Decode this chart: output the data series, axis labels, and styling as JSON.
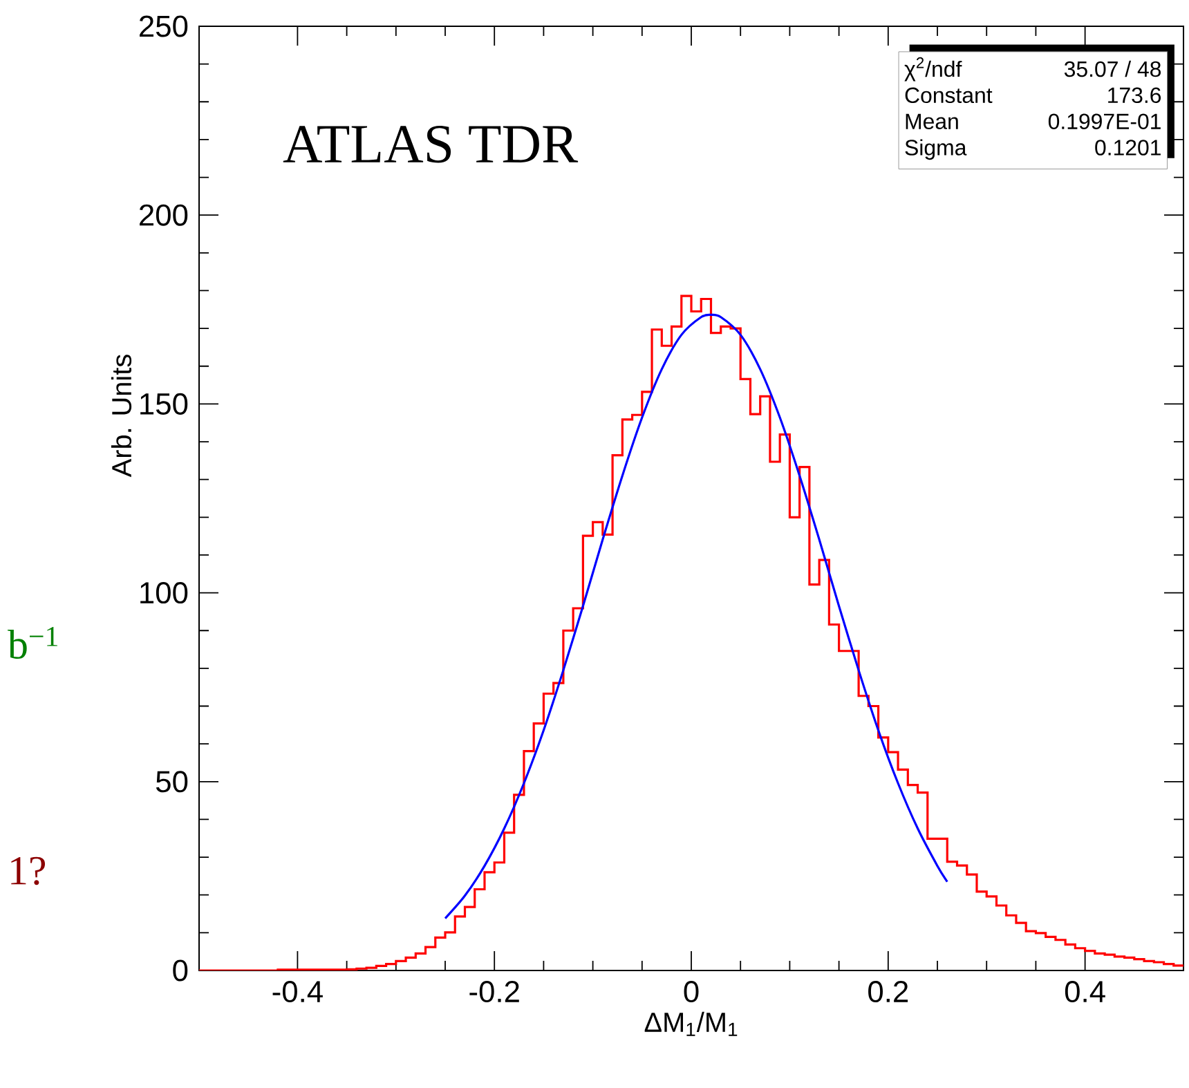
{
  "chart_data": {
    "type": "histogram",
    "xlabel": "ΔM$_{1}$/M$_{1}$",
    "ylabel": "Arb. Units",
    "annotations": [
      "ATLAS TDR",
      "χ$^{2}$/ndf",
      "35.07 / 48",
      "Constant",
      "173.6",
      "Mean",
      "0.1997E-01",
      "Sigma",
      "0.1201",
      "b$^{−1}$",
      "1?"
    ],
    "xlim": [
      -0.5,
      0.5
    ],
    "ylim": [
      0,
      250
    ],
    "xticks": [
      -0.4,
      -0.2,
      0,
      0.2,
      0.4
    ],
    "yticks": [
      0,
      50,
      100,
      150,
      200,
      250
    ],
    "series": [
      {
        "color": "#ff0000",
        "bins": [
          -0.5,
          -0.49,
          -0.48,
          -0.47,
          -0.46,
          -0.45,
          -0.44,
          -0.43,
          -0.42,
          -0.41,
          -0.4,
          -0.39,
          -0.38,
          -0.37,
          -0.36,
          -0.35,
          -0.34,
          -0.33,
          -0.32,
          -0.31,
          -0.3,
          -0.29,
          -0.28,
          -0.27,
          -0.26,
          -0.25,
          -0.24,
          -0.23,
          -0.22,
          -0.21,
          -0.2,
          -0.19,
          -0.18,
          -0.17,
          -0.16,
          -0.15,
          -0.14,
          -0.13,
          -0.12,
          -0.11,
          -0.1,
          -0.09,
          -0.08,
          -0.07,
          -0.06,
          -0.05,
          -0.04,
          -0.03,
          -0.02,
          -0.01,
          0,
          0.01,
          0.02,
          0.03,
          0.04,
          0.05,
          0.06,
          0.07,
          0.08,
          0.09,
          0.1,
          0.11,
          0.12,
          0.13,
          0.14,
          0.15,
          0.16,
          0.17,
          0.18,
          0.19,
          0.2,
          0.21,
          0.22,
          0.23,
          0.24,
          0.25,
          0.26,
          0.27,
          0.28,
          0.29,
          0.3,
          0.31,
          0.32,
          0.33,
          0.34,
          0.35,
          0.36,
          0.37,
          0.38,
          0.39,
          0.4,
          0.41,
          0.42,
          0.43,
          0.44,
          0.45,
          0.46,
          0.47,
          0.48,
          0.49,
          0.5
        ],
        "values": [
          0,
          0,
          0,
          0,
          0,
          0,
          0,
          0,
          0.2,
          0.2,
          0.2,
          0.2,
          0.2,
          0.2,
          0.2,
          0.3,
          0.5,
          0.7,
          1.2,
          1.7,
          2.5,
          3.4,
          4.5,
          6.2,
          8.7,
          10.1,
          14.3,
          16.8,
          21.5,
          26,
          28.6,
          36.5,
          46.5,
          58.1,
          65.4,
          73.3,
          76.1,
          90.0,
          95.9,
          115.1,
          118.7,
          115.4,
          136.4,
          145.9,
          147.1,
          153.2,
          169.7,
          165.4,
          170.5,
          178.6,
          174.5,
          177.8,
          168.8,
          170.5,
          170.0,
          156.6,
          147.3,
          152.0,
          134.7,
          141.9,
          120.0,
          133.3,
          102.2,
          108.7,
          91.6,
          84.6,
          84.6,
          72.7,
          70.0,
          61.7,
          57.8,
          53.2,
          49.1,
          47.1,
          34.9,
          34.9,
          28.8,
          27.8,
          25.4,
          20.9,
          19.6,
          17.2,
          14.6,
          12.6,
          10.4,
          9.9,
          8.9,
          8.1,
          6.9,
          5.9,
          5.2,
          4.5,
          4.2,
          3.7,
          3.4,
          3.0,
          2.5,
          2.2,
          1.7,
          1.3
        ]
      },
      {
        "type": "line",
        "color": "#0000ff",
        "x": [
          -0.25,
          -0.23,
          -0.21,
          -0.19,
          -0.17,
          -0.15,
          -0.13,
          -0.11,
          -0.09,
          -0.07,
          -0.05,
          -0.03,
          -0.01,
          0.01,
          0.02,
          0.03,
          0.05,
          0.07,
          0.09,
          0.11,
          0.13,
          0.15,
          0.17,
          0.19,
          0.21,
          0.23,
          0.25,
          0.26
        ],
        "values": [
          13.8,
          19.8,
          27.7,
          37.6,
          49.6,
          63.6,
          79.5,
          96.5,
          114.1,
          131.0,
          146.4,
          159.2,
          168.3,
          173.0,
          173.6,
          173.0,
          168.3,
          159.2,
          146.4,
          131.0,
          114.1,
          96.5,
          79.5,
          63.6,
          49.6,
          37.6,
          27.7,
          23.5
        ]
      }
    ]
  }
}
